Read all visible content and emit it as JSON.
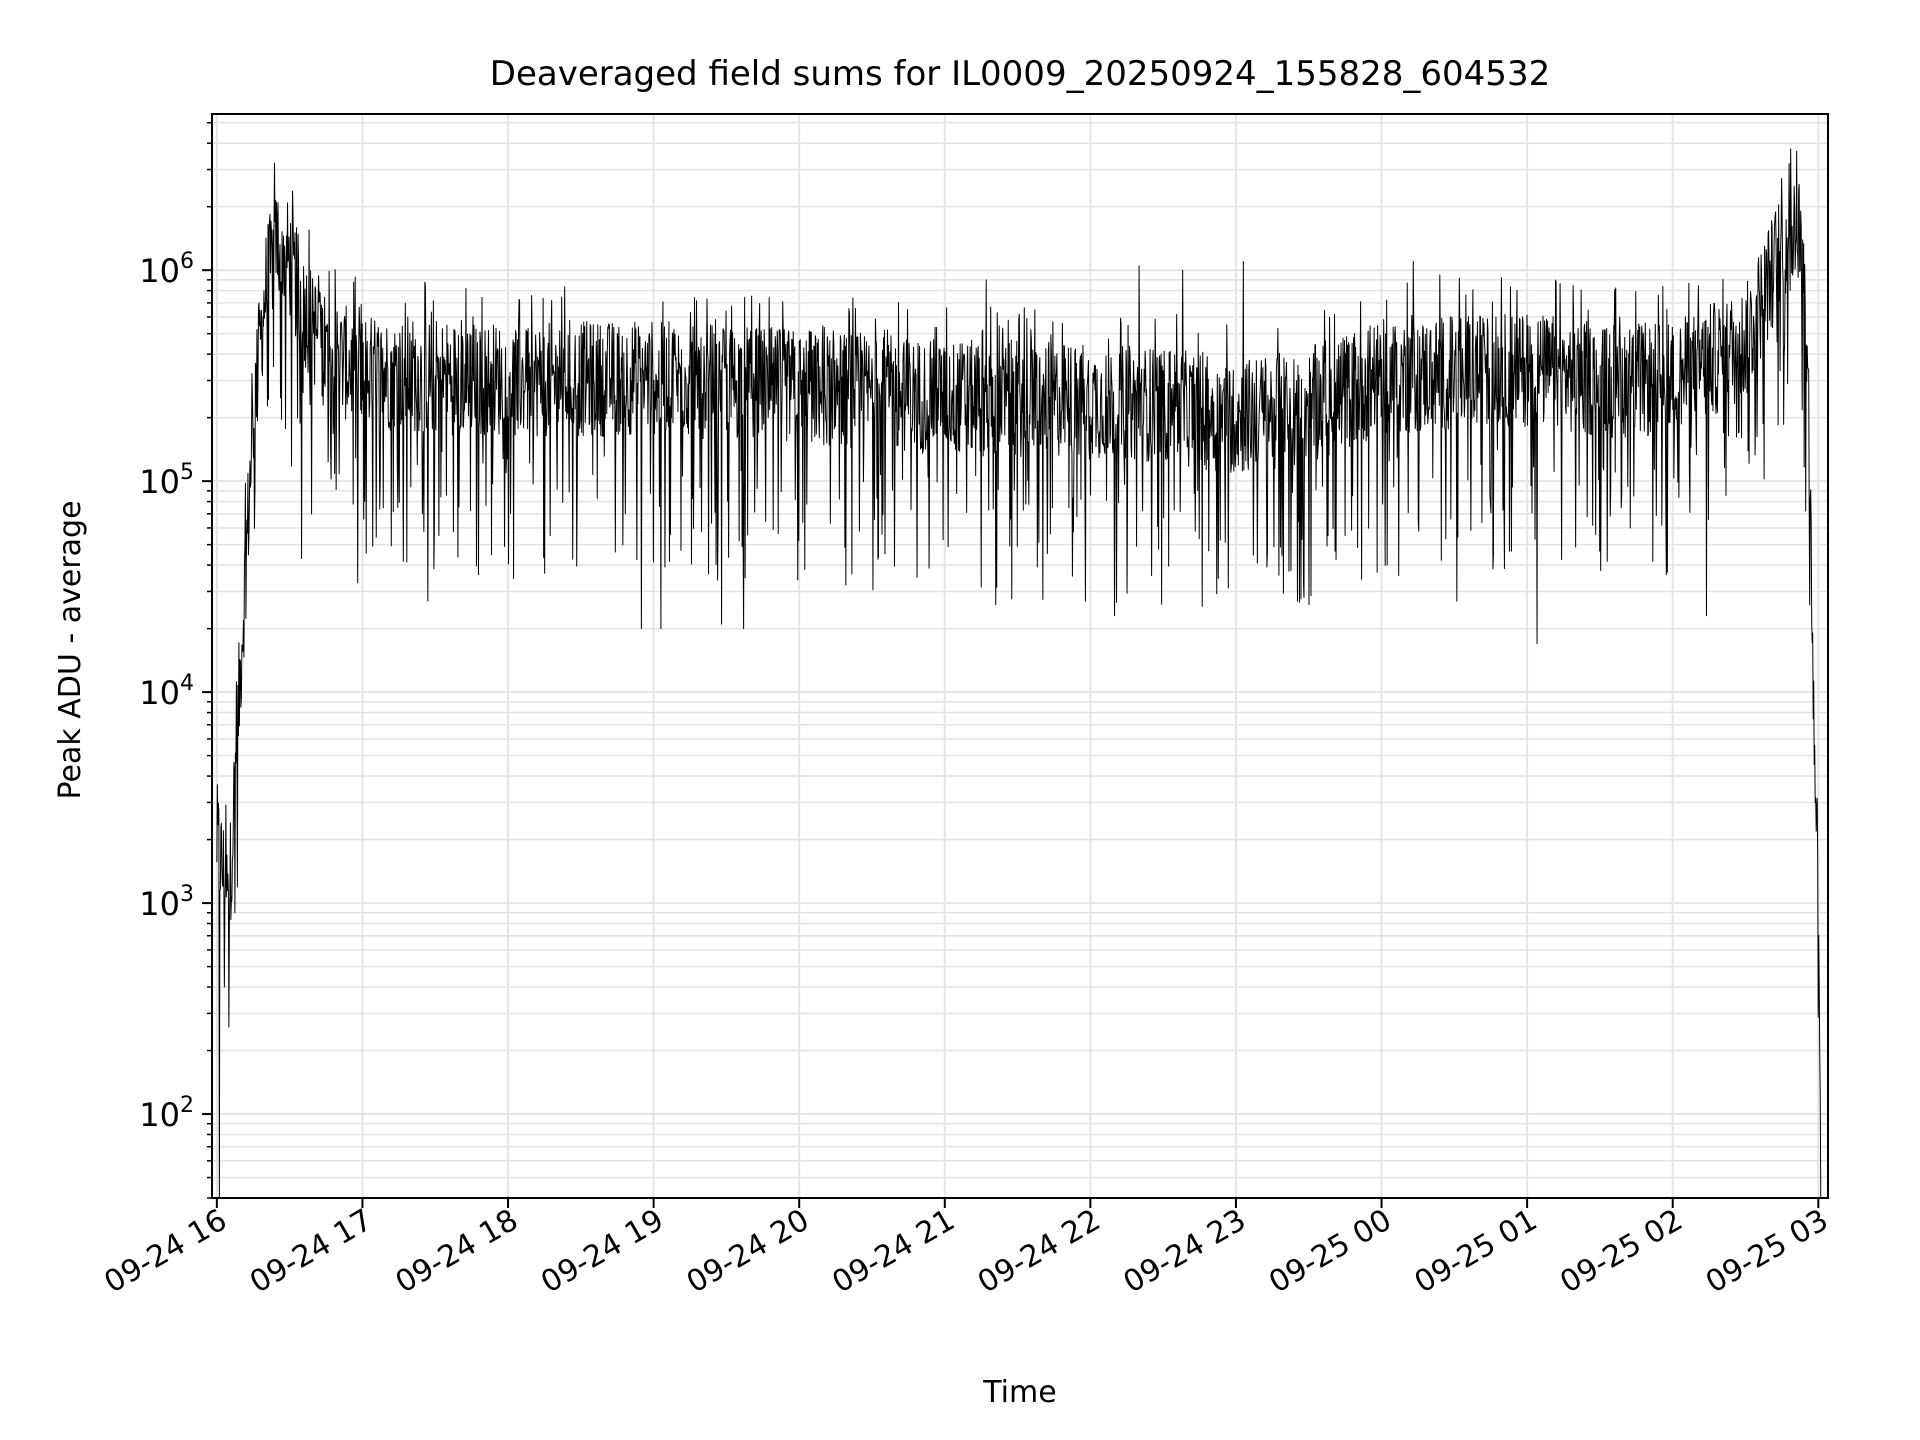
{
  "chart_data": {
    "type": "line",
    "title": "Deaveraged field sums for IL0009_20250924_155828_604532",
    "xlabel": "Time",
    "ylabel": "Peak ADU - average",
    "y_scale": "log",
    "ylim": [
      40,
      5500000
    ],
    "xlim": [
      "2025-09-24T15:58:00",
      "2025-09-25T03:04:00"
    ],
    "grid": true,
    "legend": "none",
    "line_color": "#000000",
    "grid_color": "#e4e4e4",
    "x_ticks": [
      {
        "t": "2025-09-24T16:00:00",
        "label": "09-24 16"
      },
      {
        "t": "2025-09-24T17:00:00",
        "label": "09-24 17"
      },
      {
        "t": "2025-09-24T18:00:00",
        "label": "09-24 18"
      },
      {
        "t": "2025-09-24T19:00:00",
        "label": "09-24 19"
      },
      {
        "t": "2025-09-24T20:00:00",
        "label": "09-24 20"
      },
      {
        "t": "2025-09-24T21:00:00",
        "label": "09-24 21"
      },
      {
        "t": "2025-09-24T22:00:00",
        "label": "09-24 22"
      },
      {
        "t": "2025-09-24T23:00:00",
        "label": "09-24 23"
      },
      {
        "t": "2025-09-25T00:00:00",
        "label": "09-25 00"
      },
      {
        "t": "2025-09-25T01:00:00",
        "label": "09-25 01"
      },
      {
        "t": "2025-09-25T02:00:00",
        "label": "09-25 02"
      },
      {
        "t": "2025-09-25T03:00:00",
        "label": "09-25 03"
      }
    ],
    "y_ticks": [
      {
        "value": 100,
        "base": "10",
        "exp": "2"
      },
      {
        "value": 1000,
        "base": "10",
        "exp": "3"
      },
      {
        "value": 10000,
        "base": "10",
        "exp": "4"
      },
      {
        "value": 100000,
        "base": "10",
        "exp": "5"
      },
      {
        "value": 1000000,
        "base": "10",
        "exp": "6"
      }
    ],
    "series": [
      {
        "baseline": [
          {
            "t": "2025-09-24T16:00:00",
            "y": 2000
          },
          {
            "t": "2025-09-24T16:05:00",
            "y": 1000
          },
          {
            "t": "2025-09-24T16:10:00",
            "y": 15000
          },
          {
            "t": "2025-09-24T16:15:00",
            "y": 200000
          },
          {
            "t": "2025-09-24T16:20:00",
            "y": 800000
          },
          {
            "t": "2025-09-24T16:25:00",
            "y": 1400000
          },
          {
            "t": "2025-09-24T16:30:00",
            "y": 1100000
          },
          {
            "t": "2025-09-24T16:35:00",
            "y": 700000
          },
          {
            "t": "2025-09-24T16:45:00",
            "y": 400000
          },
          {
            "t": "2025-09-24T17:00:00",
            "y": 330000
          },
          {
            "t": "2025-09-24T18:00:00",
            "y": 300000
          },
          {
            "t": "2025-09-24T19:00:00",
            "y": 310000
          },
          {
            "t": "2025-09-24T20:00:00",
            "y": 280000
          },
          {
            "t": "2025-09-24T21:00:00",
            "y": 250000
          },
          {
            "t": "2025-09-24T22:00:00",
            "y": 240000
          },
          {
            "t": "2025-09-24T22:30:00",
            "y": 230000
          },
          {
            "t": "2025-09-24T23:00:00",
            "y": 200000
          },
          {
            "t": "2025-09-24T23:30:00",
            "y": 230000
          },
          {
            "t": "2025-09-25T00:00:00",
            "y": 310000
          },
          {
            "t": "2025-09-25T01:00:00",
            "y": 340000
          },
          {
            "t": "2025-09-25T01:30:00",
            "y": 300000
          },
          {
            "t": "2025-09-25T02:00:00",
            "y": 300000
          },
          {
            "t": "2025-09-25T02:30:00",
            "y": 450000
          },
          {
            "t": "2025-09-25T02:45:00",
            "y": 1300000
          },
          {
            "t": "2025-09-25T02:52:00",
            "y": 1600000
          },
          {
            "t": "2025-09-25T02:55:00",
            "y": 600000
          },
          {
            "t": "2025-09-25T02:57:00",
            "y": 60000
          },
          {
            "t": "2025-09-25T02:58:00",
            "y": 8000
          },
          {
            "t": "2025-09-25T03:00:00",
            "y": 1500
          },
          {
            "t": "2025-09-25T03:01:00",
            "y": 80
          }
        ],
        "spikes_high": [
          {
            "t": "2025-09-24T16:24:00",
            "y": 1700000
          },
          {
            "t": "2025-09-24T16:38:00",
            "y": 1550000
          },
          {
            "t": "2025-09-24T16:58:00",
            "y": 1150000
          },
          {
            "t": "2025-09-24T21:17:00",
            "y": 900000
          },
          {
            "t": "2025-09-24T22:20:00",
            "y": 1050000
          },
          {
            "t": "2025-09-24T22:38:00",
            "y": 1000000
          },
          {
            "t": "2025-09-24T23:03:00",
            "y": 1100000
          },
          {
            "t": "2025-09-25T00:13:00",
            "y": 1100000
          },
          {
            "t": "2025-09-25T00:24:00",
            "y": 950000
          },
          {
            "t": "2025-09-25T01:12:00",
            "y": 880000
          },
          {
            "t": "2025-09-25T02:48:00",
            "y": 3200000
          },
          {
            "t": "2025-09-25T02:50:00",
            "y": 2500000
          }
        ],
        "spikes_low": [
          {
            "t": "2025-09-24T16:01:00",
            "y": 40
          },
          {
            "t": "2025-09-24T16:03:00",
            "y": 400
          },
          {
            "t": "2025-09-24T16:35:00",
            "y": 43000
          },
          {
            "t": "2025-09-24T16:58:00",
            "y": 33000
          },
          {
            "t": "2025-09-24T17:27:00",
            "y": 27000
          },
          {
            "t": "2025-09-24T18:55:00",
            "y": 20000
          },
          {
            "t": "2025-09-24T19:03:00",
            "y": 20000
          },
          {
            "t": "2025-09-24T19:28:00",
            "y": 21000
          },
          {
            "t": "2025-09-24T19:37:00",
            "y": 20000
          },
          {
            "t": "2025-09-24T21:21:00",
            "y": 26000
          },
          {
            "t": "2025-09-24T21:58:00",
            "y": 27000
          },
          {
            "t": "2025-09-24T22:10:00",
            "y": 23000
          },
          {
            "t": "2025-09-24T23:30:00",
            "y": 26000
          },
          {
            "t": "2025-09-25T00:31:00",
            "y": 27000
          },
          {
            "t": "2025-09-25T01:04:00",
            "y": 17000
          },
          {
            "t": "2025-09-25T02:14:00",
            "y": 23000
          }
        ]
      }
    ]
  }
}
